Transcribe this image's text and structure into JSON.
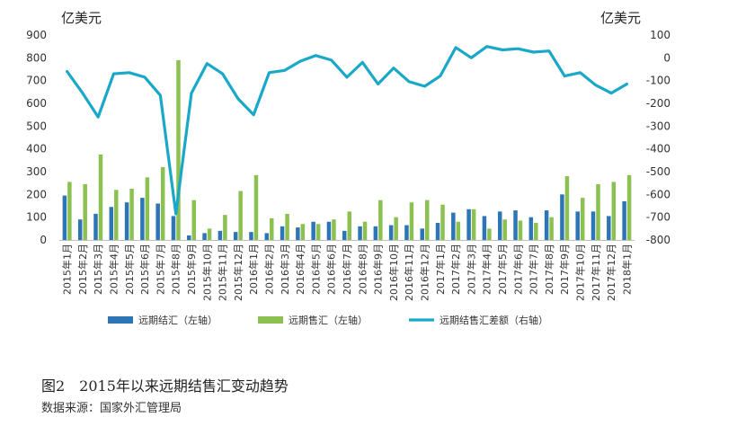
{
  "figure": {
    "left_unit": "亿美元",
    "right_unit": "亿美元",
    "caption": "图2　2015年以来远期结售汇变动趋势",
    "source": "数据来源：国家外汇管理局"
  },
  "chart_data": {
    "type": "bar",
    "categories": [
      "2015年1月",
      "2015年2月",
      "2015年3月",
      "2015年4月",
      "2015年5月",
      "2015年6月",
      "2015年7月",
      "2015年8月",
      "2015年9月",
      "2015年10月",
      "2015年11月",
      "2015年12月",
      "2016年1月",
      "2016年2月",
      "2016年3月",
      "2016年4月",
      "2016年5月",
      "2016年6月",
      "2016年7月",
      "2016年8月",
      "2016年9月",
      "2016年10月",
      "2016年11月",
      "2016年12月",
      "2017年1月",
      "2017年2月",
      "2017年3月",
      "2017年4月",
      "2017年5月",
      "2017年6月",
      "2017年7月",
      "2017年8月",
      "2017年9月",
      "2017年10月",
      "2017年11月",
      "2017年12月",
      "2018年1月"
    ],
    "y_left": {
      "min": 0,
      "max": 900,
      "step": 100
    },
    "y_right": {
      "min": -800,
      "max": 100,
      "step": 100
    },
    "grid": false,
    "legend_position": "bottom",
    "series": [
      {
        "name": "远期结汇（左轴）",
        "type": "bar",
        "axis": "left",
        "color": "#2e75b6",
        "values": [
          195,
          90,
          115,
          145,
          165,
          185,
          160,
          105,
          20,
          30,
          40,
          35,
          35,
          30,
          60,
          55,
          80,
          80,
          40,
          60,
          60,
          65,
          65,
          50,
          75,
          120,
          135,
          105,
          125,
          130,
          100,
          130,
          200,
          125,
          125,
          105,
          170
        ]
      },
      {
        "name": "远期售汇（左轴）",
        "type": "bar",
        "axis": "left",
        "color": "#8cc152",
        "values": [
          255,
          245,
          375,
          220,
          225,
          275,
          320,
          790,
          175,
          50,
          110,
          215,
          285,
          95,
          115,
          70,
          70,
          90,
          125,
          80,
          175,
          100,
          165,
          175,
          155,
          80,
          135,
          50,
          90,
          85,
          75,
          100,
          280,
          185,
          245,
          255,
          285
        ]
      },
      {
        "name": "远期结售汇差额（右轴）",
        "type": "line",
        "axis": "right",
        "color": "#1aa8c8",
        "values": [
          -60,
          -155,
          -260,
          -70,
          -65,
          -85,
          -165,
          -685,
          -155,
          -25,
          -70,
          -180,
          -250,
          -65,
          -55,
          -15,
          10,
          -10,
          -85,
          -20,
          -115,
          -45,
          -105,
          -125,
          -80,
          45,
          0,
          50,
          35,
          40,
          25,
          30,
          -80,
          -65,
          -120,
          -155,
          -115
        ]
      }
    ]
  }
}
